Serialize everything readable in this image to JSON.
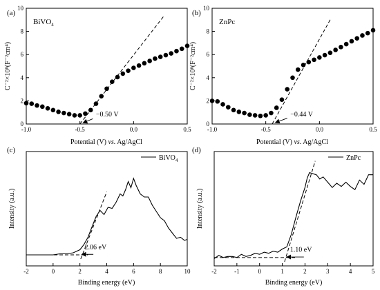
{
  "colors": {
    "line": "#000000",
    "marker": "#000000",
    "background": "#ffffff"
  },
  "chart_data": [
    {
      "id": "a",
      "panel_label": "(a)",
      "type": "scatter",
      "material_label": "BiVO",
      "material_sub": "4",
      "x_label_parts": [
        "Potential (V) ",
        "vs.",
        " Ag/AgCl"
      ],
      "y_label": "C⁻²×10⁸(F⁻²cm⁴)",
      "xlim": [
        -1.0,
        0.5
      ],
      "ylim": [
        0,
        10
      ],
      "xticks": [
        -1.0,
        -0.5,
        0.0,
        0.5
      ],
      "xtick_labels": [
        "-1.0",
        "-0.5",
        "0.0",
        "0.5"
      ],
      "yticks": [
        0,
        2,
        4,
        6,
        8,
        10
      ],
      "ytick_labels": [
        "0",
        "2",
        "4",
        "6",
        "8",
        "10"
      ],
      "points": {
        "x": [
          -1.0,
          -0.95,
          -0.9,
          -0.85,
          -0.8,
          -0.75,
          -0.7,
          -0.65,
          -0.6,
          -0.55,
          -0.5,
          -0.45,
          -0.4,
          -0.35,
          -0.3,
          -0.25,
          -0.2,
          -0.15,
          -0.1,
          -0.05,
          0.0,
          0.05,
          0.1,
          0.15,
          0.2,
          0.25,
          0.3,
          0.35,
          0.4,
          0.45,
          0.5
        ],
        "y": [
          1.8,
          1.75,
          1.6,
          1.5,
          1.35,
          1.2,
          1.05,
          0.95,
          0.85,
          0.75,
          0.75,
          0.9,
          1.2,
          1.75,
          2.4,
          3.05,
          3.65,
          4.05,
          4.35,
          4.6,
          4.85,
          5.05,
          5.25,
          5.45,
          5.65,
          5.8,
          5.95,
          6.1,
          6.3,
          6.5,
          6.75
        ]
      },
      "fit_line": {
        "x": [
          -0.5,
          0.28
        ],
        "y": [
          0.0,
          9.3
        ]
      },
      "annotation": {
        "text": "−0.50 V",
        "arrow_from": [
          -0.38,
          0.45
        ],
        "arrow_to": [
          -0.47,
          0.1
        ],
        "text_at": [
          -0.37,
          0.55
        ]
      }
    },
    {
      "id": "b",
      "panel_label": "(b)",
      "type": "scatter",
      "material_label": "ZnPc",
      "material_sub": "",
      "x_label_parts": [
        "Potential (V) ",
        "vs.",
        " Ag/AgCl"
      ],
      "y_label": "C⁻²×10⁸(F⁻²cm⁴)",
      "xlim": [
        -1.0,
        0.5
      ],
      "ylim": [
        0,
        10
      ],
      "xticks": [
        -1.0,
        -0.5,
        0.0,
        0.5
      ],
      "xtick_labels": [
        "-1.0",
        "-0.5",
        "0.0",
        "0.5"
      ],
      "yticks": [
        0,
        2,
        4,
        6,
        8,
        10
      ],
      "ytick_labels": [
        "0",
        "2",
        "4",
        "6",
        "8",
        "10"
      ],
      "points": {
        "x": [
          -1.0,
          -0.95,
          -0.9,
          -0.85,
          -0.8,
          -0.75,
          -0.7,
          -0.65,
          -0.6,
          -0.55,
          -0.5,
          -0.45,
          -0.4,
          -0.35,
          -0.3,
          -0.25,
          -0.2,
          -0.15,
          -0.1,
          -0.05,
          0.0,
          0.05,
          0.1,
          0.15,
          0.2,
          0.25,
          0.3,
          0.35,
          0.4,
          0.45,
          0.5
        ],
        "y": [
          2.0,
          1.95,
          1.7,
          1.45,
          1.2,
          1.05,
          0.95,
          0.8,
          0.75,
          0.7,
          0.75,
          0.95,
          1.4,
          2.1,
          3.0,
          4.0,
          4.7,
          5.1,
          5.35,
          5.55,
          5.75,
          5.95,
          6.15,
          6.4,
          6.65,
          6.9,
          7.15,
          7.4,
          7.65,
          7.85,
          8.1
        ]
      },
      "fit_line": {
        "x": [
          -0.44,
          0.1
        ],
        "y": [
          0.0,
          9.0
        ]
      },
      "annotation": {
        "text": "−0.44 V",
        "arrow_from": [
          -0.3,
          0.5
        ],
        "arrow_to": [
          -0.41,
          0.12
        ],
        "text_at": [
          -0.29,
          0.55
        ]
      }
    },
    {
      "id": "c",
      "panel_label": "(c)",
      "type": "line",
      "legend": "BiVO",
      "legend_sub": "4",
      "x_label": "Binding energy (eV)",
      "y_label": "Intensity (a.u.)",
      "xlim": [
        -2,
        10
      ],
      "xticks": [
        -2,
        0,
        2,
        4,
        6,
        8,
        10
      ],
      "xtick_labels": [
        "-2",
        "0",
        "2",
        "4",
        "6",
        "8",
        "10"
      ],
      "ylim": [
        0,
        100
      ],
      "series": {
        "x": [
          -2,
          -1,
          0,
          0.5,
          1,
          1.5,
          2,
          2.3,
          2.6,
          2.9,
          3.2,
          3.5,
          3.8,
          4.1,
          4.4,
          4.7,
          5.0,
          5.2,
          5.4,
          5.6,
          5.8,
          6.0,
          6.2,
          6.5,
          6.8,
          7.1,
          7.4,
          7.7,
          8.0,
          8.3,
          8.6,
          8.9,
          9.2,
          9.5,
          9.8,
          10
        ],
        "y": [
          4,
          4,
          4,
          5,
          5,
          6,
          9,
          14,
          21,
          31,
          41,
          47,
          43,
          50,
          49,
          55,
          63,
          61,
          67,
          75,
          69,
          78,
          71,
          63,
          60,
          60,
          52,
          46,
          40,
          37,
          30,
          25,
          20,
          21,
          18,
          19
        ]
      },
      "fit_line": {
        "x": [
          2.06,
          4.0
        ],
        "y": [
          0,
          65
        ]
      },
      "baseline": {
        "x": [
          -2,
          2.6
        ],
        "y": [
          4,
          4
        ]
      },
      "annotation": {
        "text": "2.06 eV",
        "arrow_from": [
          3.0,
          4.5
        ],
        "arrow_to": [
          2.15,
          4.5
        ],
        "text_at": [
          2.2,
          8
        ]
      }
    },
    {
      "id": "d",
      "panel_label": "(d)",
      "type": "line",
      "legend": "ZnPc",
      "legend_sub": "",
      "x_label": "Binding energy (eV)",
      "y_label": "Intensity (a.u.)",
      "xlim": [
        -2,
        5
      ],
      "xticks": [
        -2,
        -1,
        0,
        1,
        2,
        3,
        4,
        5
      ],
      "xtick_labels": [
        "-2",
        "-1",
        "0",
        "1",
        "2",
        "3",
        "4",
        "5"
      ],
      "ylim": [
        0,
        100
      ],
      "series": {
        "x": [
          -2,
          -1.8,
          -1.6,
          -1.4,
          -1.2,
          -1.0,
          -0.8,
          -0.6,
          -0.4,
          -0.2,
          0.0,
          0.2,
          0.4,
          0.6,
          0.8,
          1.0,
          1.2,
          1.4,
          1.6,
          1.8,
          2.0,
          2.1,
          2.2,
          2.35,
          2.5,
          2.65,
          2.8,
          3.0,
          3.2,
          3.4,
          3.6,
          3.8,
          4.0,
          4.2,
          4.4,
          4.6,
          4.8,
          5.0
        ],
        "y": [
          3,
          6,
          4,
          5,
          5,
          4,
          7,
          5,
          6,
          8,
          7,
          9,
          8,
          10,
          9,
          12,
          14,
          26,
          42,
          57,
          70,
          79,
          84,
          83,
          82,
          78,
          80,
          75,
          70,
          74,
          71,
          75,
          71,
          68,
          77,
          73,
          82,
          82
        ]
      },
      "fit_line": {
        "x": [
          1.1,
          2.45
        ],
        "y": [
          0,
          95
        ]
      },
      "baseline": {
        "x": [
          -2,
          1.6
        ],
        "y": [
          4,
          4
        ]
      },
      "annotation": {
        "text": "1.10 eV",
        "arrow_from": [
          1.95,
          4.5
        ],
        "arrow_to": [
          1.2,
          4.5
        ],
        "text_at": [
          1.25,
          8
        ]
      }
    }
  ]
}
